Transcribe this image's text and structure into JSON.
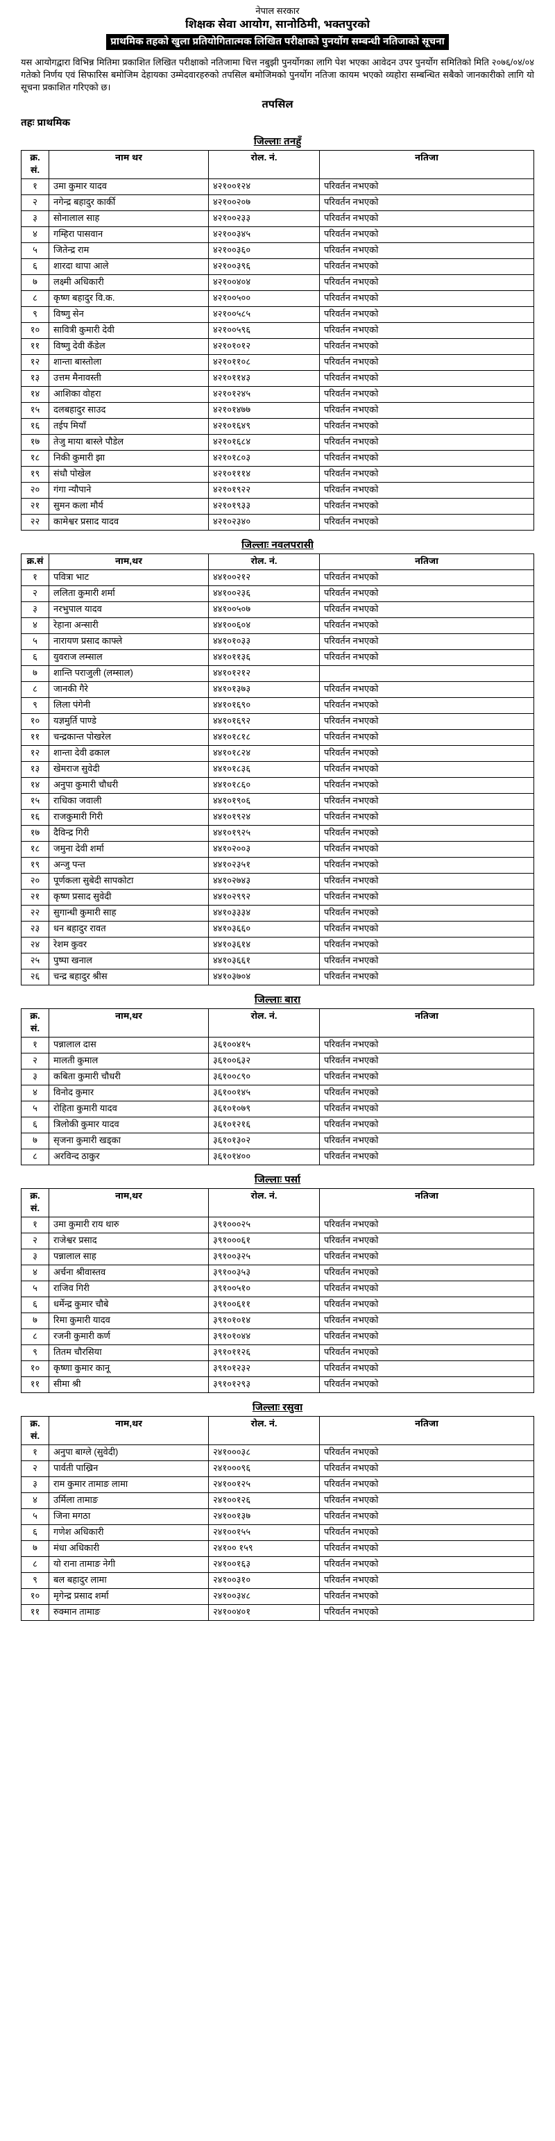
{
  "header": {
    "gov": "नेपाल सरकार",
    "org": "शिक्षक सेवा आयोग, सानोठिमी, भक्तपुरको",
    "notice_title": "प्राथमिक तहको खुला प्रतियोगितात्मक लिखित परीक्षाको पुनर्योग सम्बन्धी नतिजाको सूचना"
  },
  "intro": "यस आयोगद्वारा विभिन्न मितिमा प्रकाशित लिखित परीक्षाको नतिजामा चित्त नबुझी पुनर्योगका लागि पेश भएका आवेदन उपर पुनर्योग समितिको मिति २०७६/०४/०४ गतेको निर्णय एवं सिफारिस बमोजिम देहायका उम्मेदवारहरुको तपसिल बमोजिमको पुनर्योग नतिजा कायम भएको व्यहोरा सम्बन्धित सबैको जानकारीको लागि यो सूचना प्रकाशित गरिएको छ।",
  "tapasil": "तपसिल",
  "level": "तहः प्राथमिक",
  "columns": {
    "sn": "क्र.\nसं.",
    "sn2": "क्र.सं",
    "name": "नाम थर",
    "name2": "नाम,थर",
    "roll": "रोल. नं.",
    "result": "नतिजा"
  },
  "result_text": "परिवर्तन नभएको",
  "districts": [
    {
      "title": "जिल्लाः तनहुँ",
      "sn_header": "sn",
      "name_header": "name",
      "rows": [
        {
          "sn": "१",
          "name": "उमा कुमार यादव",
          "roll": "४२१००१२४"
        },
        {
          "sn": "२",
          "name": "नगेन्द्र बहादुर कार्की",
          "roll": "४२१००२०७"
        },
        {
          "sn": "३",
          "name": "सोनालाल साह",
          "roll": "४२१००२३३"
        },
        {
          "sn": "४",
          "name": "गम्हिरा पासवान",
          "roll": "४२१००३४५"
        },
        {
          "sn": "५",
          "name": "जितेन्द्र राम",
          "roll": "४२१००३६०"
        },
        {
          "sn": "६",
          "name": "शारदा थापा आले",
          "roll": "४२१००३९६"
        },
        {
          "sn": "७",
          "name": "लक्ष्मी अधिकारी",
          "roll": "४२१००४०४"
        },
        {
          "sn": "८",
          "name": "कृष्ण बहादुर वि.क.",
          "roll": "४२१००५००"
        },
        {
          "sn": "९",
          "name": "विष्णु सेन",
          "roll": "४२१००५८५"
        },
        {
          "sn": "१०",
          "name": "सावित्री कुमारी देवी",
          "roll": "४२१००५९६"
        },
        {
          "sn": "११",
          "name": "विष्णु देवी कँडेल",
          "roll": "४२१०१०१२"
        },
        {
          "sn": "१२",
          "name": "शान्ता बास्तोला",
          "roll": "४२१०११०८"
        },
        {
          "sn": "१३",
          "name": "उत्तम मैनावस्ती",
          "roll": "४२१०११४३"
        },
        {
          "sn": "१४",
          "name": "आशिका वोहरा",
          "roll": "४२१०१२४५"
        },
        {
          "sn": "१५",
          "name": "दलबहादुर साउद",
          "roll": "४२१०१४७७"
        },
        {
          "sn": "१६",
          "name": "तईप मियाँ",
          "roll": "४२१०१६४९"
        },
        {
          "sn": "१७",
          "name": "तेजु माया बास्ले पौडेल",
          "roll": "४२१०१६८४"
        },
        {
          "sn": "१८",
          "name": "निकी कुमारी झा",
          "roll": "४२१०१८०३"
        },
        {
          "sn": "१९",
          "name": "संधौ पोखेल",
          "roll": "४२१०१११४"
        },
        {
          "sn": "२०",
          "name": "गंगा न्यौपाने",
          "roll": "४२१०१९२२"
        },
        {
          "sn": "२१",
          "name": "सुमन कला मौर्य",
          "roll": "४२१०१९३३"
        },
        {
          "sn": "२२",
          "name": "कामेश्वर प्रसाद यादव",
          "roll": "४२१०२३४०"
        }
      ]
    },
    {
      "title": "जिल्लाः नवलपरासी",
      "sn_header": "sn2",
      "name_header": "name2",
      "rows": [
        {
          "sn": "१",
          "name": "पवित्रा भाट",
          "roll": "४४१००२१२"
        },
        {
          "sn": "२",
          "name": "ललिता कुमारी शर्मा",
          "roll": "४४१००२३६"
        },
        {
          "sn": "३",
          "name": "नरभुपाल यादव",
          "roll": "४४१००५०७"
        },
        {
          "sn": "४",
          "name": "रेहाना अन्सारी",
          "roll": "४४१००६०४"
        },
        {
          "sn": "५",
          "name": "नारायण प्रसाद काफ्ले",
          "roll": "४४१०१०३३"
        },
        {
          "sn": "६",
          "name": "युवराज लम्साल",
          "roll": "४४१०११३६"
        },
        {
          "sn": "७",
          "name": "शान्ति पराजुली (लम्साल)",
          "roll": "४४१०१२१२",
          "no_result": true
        },
        {
          "sn": "८",
          "name": "जानकी गैरे",
          "roll": "४४१०१३७३"
        },
        {
          "sn": "९",
          "name": "लिला पंगेनी",
          "roll": "४४१०१६९०"
        },
        {
          "sn": "१०",
          "name": "यज्ञमुर्ति पाण्डे",
          "roll": "४४१०१६९२"
        },
        {
          "sn": "११",
          "name": "चन्द्रकान्त पोखरेल",
          "roll": "४४१०१८१८"
        },
        {
          "sn": "१२",
          "name": "शान्ता देवी ढकाल",
          "roll": "४४१०१८२४"
        },
        {
          "sn": "१३",
          "name": "खेमराज सुवेदी",
          "roll": "४४१०१८३६"
        },
        {
          "sn": "१४",
          "name": "अनुपा कुमारी चौधरी",
          "roll": "४४१०१८६०"
        },
        {
          "sn": "१५",
          "name": "राधिका जवाली",
          "roll": "४४१०१९०६"
        },
        {
          "sn": "१६",
          "name": "राजकुमारी गिरी",
          "roll": "४४१०१९२४"
        },
        {
          "sn": "१७",
          "name": "दैविन्द्र गिरी",
          "roll": "४४१०१९२५"
        },
        {
          "sn": "१८",
          "name": "जमुना देवी शर्मा",
          "roll": "४४१०२००३"
        },
        {
          "sn": "१९",
          "name": "अन्जु पन्त",
          "roll": "४४१०२३५१"
        },
        {
          "sn": "२०",
          "name": "पूर्णकला सुबेदी सापकोटा",
          "roll": "४४१०२७४३"
        },
        {
          "sn": "२१",
          "name": "कृष्ण प्रसाद सुवेदी",
          "roll": "४४१०२९९२"
        },
        {
          "sn": "२२",
          "name": "सुगान्धी कुमारी साह",
          "roll": "४४१०३३३४"
        },
        {
          "sn": "२३",
          "name": "धन बहादुर रावत",
          "roll": "४४१०३६६०"
        },
        {
          "sn": "२४",
          "name": "रेशम कुवर",
          "roll": "४४१०३६१४"
        },
        {
          "sn": "२५",
          "name": "पुष्पा खनाल",
          "roll": "४४१०३६६१"
        },
        {
          "sn": "२६",
          "name": "चन्द्र बहादुर श्रीस",
          "roll": "४४१०३७०४"
        }
      ]
    },
    {
      "title": "जिल्लाः बारा",
      "sn_header": "sn",
      "name_header": "name2",
      "rows": [
        {
          "sn": "१",
          "name": "पन्नालाल दास",
          "roll": "३६१००४१५"
        },
        {
          "sn": "२",
          "name": "मालती कुमाल",
          "roll": "३६१००६३२"
        },
        {
          "sn": "३",
          "name": "कबिता कुमारी चौधरी",
          "roll": "३६१००८९०"
        },
        {
          "sn": "४",
          "name": "विनोद कुमार",
          "roll": "३६१००१४५"
        },
        {
          "sn": "५",
          "name": "रोहिता कुमारी यादव",
          "roll": "३६१०१०७९"
        },
        {
          "sn": "६",
          "name": "त्रिलोकी कुमार यादव",
          "roll": "३६१०१२१६"
        },
        {
          "sn": "७",
          "name": "सृजना कुमारी खड्का",
          "roll": "३६१०१३०२"
        },
        {
          "sn": "८",
          "name": "अरविन्द ठाकुर",
          "roll": "३६१०१४००"
        }
      ]
    },
    {
      "title": "जिल्लाः पर्सा",
      "sn_header": "sn",
      "name_header": "name2",
      "rows": [
        {
          "sn": "१",
          "name": "उमा कुमारी राय थारु",
          "roll": "३९१०००२५"
        },
        {
          "sn": "२",
          "name": "राजेश्वर प्रसाद",
          "roll": "३९१०००६१"
        },
        {
          "sn": "३",
          "name": "पन्नालाल साह",
          "roll": "३९१००३२५"
        },
        {
          "sn": "४",
          "name": "अर्चना श्रीवास्तव",
          "roll": "३९१००३५३"
        },
        {
          "sn": "५",
          "name": "राजिव गिरी",
          "roll": "३९१००५१०"
        },
        {
          "sn": "६",
          "name": "धर्मेन्द्र कुमार चौबे",
          "roll": "३९१००६११"
        },
        {
          "sn": "७",
          "name": "रिमा कुमारी यादव",
          "roll": "३९१०१०१४"
        },
        {
          "sn": "८",
          "name": "रजनी कुमारी कर्ण",
          "roll": "३९१०१०४४"
        },
        {
          "sn": "९",
          "name": "तितम चौरसिया",
          "roll": "३९१०११२६"
        },
        {
          "sn": "१०",
          "name": "कृष्णा कुमार कानू",
          "roll": "३९१०१२३२"
        },
        {
          "sn": "११",
          "name": "सीमा श्री",
          "roll": "३९१०१२९३"
        }
      ]
    },
    {
      "title": "जिल्लाः रसुवा",
      "sn_header": "sn",
      "name_header": "name2",
      "rows": [
        {
          "sn": "१",
          "name": "अनुपा बाग्ले (सुवेदी)",
          "roll": "२४१०००३८"
        },
        {
          "sn": "२",
          "name": "पार्वती पाख्रिन",
          "roll": "२४१०००९६"
        },
        {
          "sn": "३",
          "name": "राम कुमार तामाङ लामा",
          "roll": "२४१००१२५"
        },
        {
          "sn": "४",
          "name": "उर्मिला तामाङ",
          "roll": "२४१००१२६"
        },
        {
          "sn": "५",
          "name": "जिना मगठा",
          "roll": "२४१००१३७"
        },
        {
          "sn": "६",
          "name": "गणेश अधिकारी",
          "roll": "२४१००१५५"
        },
        {
          "sn": "७",
          "name": "मंधा अधिकारी",
          "roll": "२४१०० १५९"
        },
        {
          "sn": "८",
          "name": "यो राना तामाङ नेगी",
          "roll": "२४१००१६३"
        },
        {
          "sn": "९",
          "name": "बल बहादुर लामा",
          "roll": "२४१००३१०"
        },
        {
          "sn": "१०",
          "name": "मृगेन्द्र प्रसाद शर्मा",
          "roll": "२४१००३४८"
        },
        {
          "sn": "११",
          "name": "रुक्मान तामाङ",
          "roll": "२४१००४०१"
        }
      ]
    }
  ]
}
